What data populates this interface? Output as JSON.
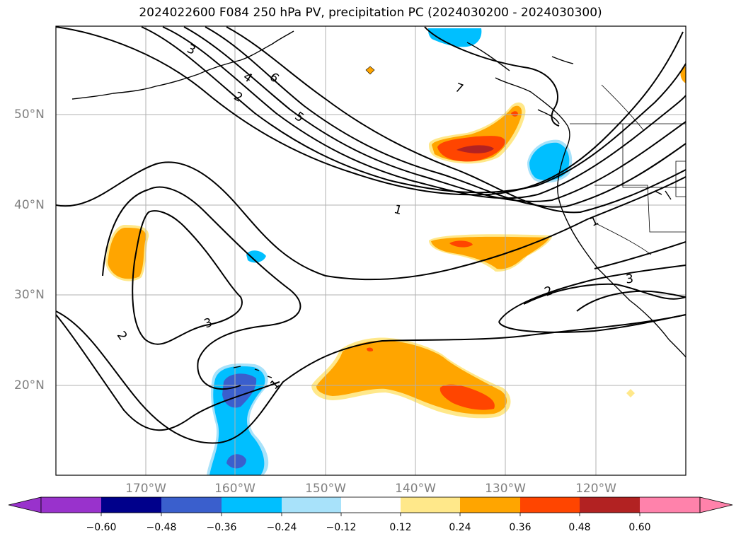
{
  "title": "2024022600 F084 250 hPa PV, precipitation PC (2024030200 - 2024030300)",
  "lat_labels": [
    "50°N",
    "40°N",
    "30°N",
    "20°N"
  ],
  "lon_labels": [
    "170°W",
    "160°W",
    "150°W",
    "140°W",
    "130°W",
    "120°W"
  ],
  "contour_labels": [
    "3",
    "4",
    "6",
    "7",
    "2",
    "5",
    "1",
    "1",
    "3",
    "2",
    "3",
    "2",
    "1"
  ],
  "colorbar": {
    "ticks": [
      "−0.60",
      "−0.48",
      "−0.36",
      "−0.24",
      "−0.12",
      "0.12",
      "0.24",
      "0.36",
      "0.48",
      "0.60"
    ],
    "colors": [
      "#9932cc",
      "#00008b",
      "#3a5fcd",
      "#00bfff",
      "#a8e2fa",
      "#ffffff",
      "#ffe88a",
      "#ffa500",
      "#ff4500",
      "#b22222",
      "#ff82ab"
    ]
  },
  "colors": {
    "contour": "#000000",
    "grid": "#b0b0b0",
    "axis_label": "#808080"
  }
}
